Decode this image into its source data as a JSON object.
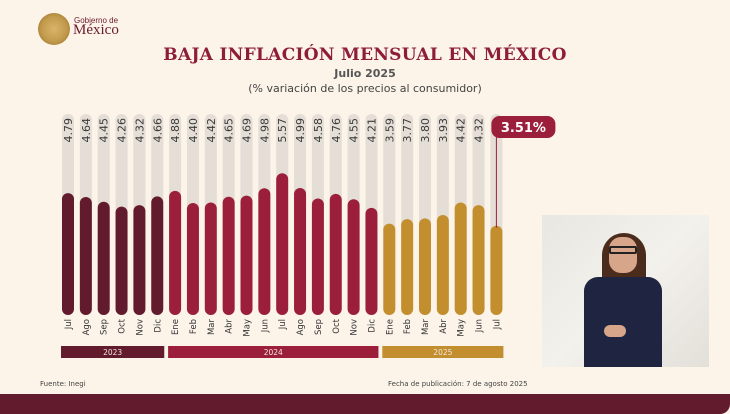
{
  "header": {
    "logo_line1": "Gobierno de",
    "logo_line2": "México",
    "title": "BAJA INFLACIÓN MENSUAL EN MÉXICO",
    "subtitle": "Julio 2025",
    "subtitle2": "(% variación de los precios al consumidor)"
  },
  "footer": {
    "source": "Fuente: Inegi",
    "published": "Fecha de publicación: 7 de agosto 2025"
  },
  "colors": {
    "year_2023": "#621a2d",
    "year_2024": "#9b1f3b",
    "year_2025": "#c38f2e",
    "track": "#e4ded6",
    "highlight": "#9b1f3b"
  },
  "chart_data": {
    "type": "bar",
    "title": "BAJA INFLACIÓN MENSUAL EN MÉXICO",
    "subtitle": "Julio 2025 (% variación de los precios al consumidor)",
    "categories": [
      "Jul",
      "Ago",
      "Sep",
      "Oct",
      "Nov",
      "Dic",
      "Ene",
      "Feb",
      "Mar",
      "Abr",
      "May",
      "Jun",
      "Jul",
      "Ago",
      "Sep",
      "Oct",
      "Nov",
      "Dic",
      "Ene",
      "Feb",
      "Mar",
      "Abr",
      "May",
      "Jun",
      "Jul"
    ],
    "years": [
      "2023",
      "2023",
      "2023",
      "2023",
      "2023",
      "2023",
      "2024",
      "2024",
      "2024",
      "2024",
      "2024",
      "2024",
      "2024",
      "2024",
      "2024",
      "2024",
      "2024",
      "2024",
      "2025",
      "2025",
      "2025",
      "2025",
      "2025",
      "2025",
      "2025"
    ],
    "values": [
      4.79,
      4.64,
      4.45,
      4.26,
      4.32,
      4.66,
      4.88,
      4.4,
      4.42,
      4.65,
      4.69,
      4.98,
      5.57,
      4.99,
      4.58,
      4.76,
      4.55,
      4.21,
      3.59,
      3.77,
      3.8,
      3.93,
      4.42,
      4.32,
      3.51
    ],
    "value_labels": [
      "4.79",
      "4.64",
      "4.45",
      "4.26",
      "4.32",
      "4.66",
      "4.88",
      "4.40",
      "4.42",
      "4.65",
      "4.69",
      "4.98",
      "5.57",
      "4.99",
      "4.58",
      "4.76",
      "4.55",
      "4.21",
      "3.59",
      "3.77",
      "3.80",
      "3.93",
      "4.42",
      "4.32",
      ""
    ],
    "year_groups": [
      {
        "label": "2023",
        "start": 0,
        "end": 5
      },
      {
        "label": "2024",
        "start": 6,
        "end": 17
      },
      {
        "label": "2025",
        "start": 18,
        "end": 24
      }
    ],
    "highlight": {
      "index": 24,
      "label": "3.51%"
    },
    "ylim": [
      0,
      7.9
    ],
    "xlabel": "",
    "ylabel": "",
    "grid": false,
    "legend": "none"
  }
}
